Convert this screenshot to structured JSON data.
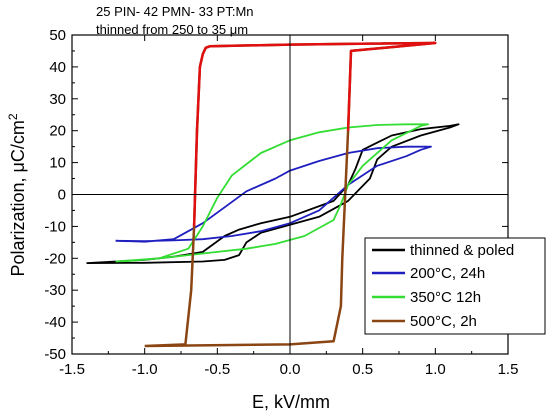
{
  "chart_data": {
    "type": "line",
    "annotation": [
      "25 PIN- 42 PMN- 33 PT:Mn",
      "thinned from 250 to 35 μm"
    ],
    "xlabel": "E, kV/mm",
    "ylabel_main": "Polarization, μC/cm",
    "ylabel_sup": "2",
    "xlim": [
      -1.5,
      1.5
    ],
    "ylim": [
      -50,
      50
    ],
    "xticks": [
      -1.5,
      -1.0,
      -0.5,
      0.0,
      0.5,
      1.0,
      1.5
    ],
    "xtick_labels": [
      "-1.5",
      "-1.0",
      "-0.5",
      "0.0",
      "0.5",
      "1.0",
      "1.5"
    ],
    "yticks": [
      -50,
      -40,
      -30,
      -20,
      -10,
      0,
      10,
      20,
      30,
      40,
      50
    ],
    "ytick_labels": [
      "-50",
      "-40",
      "-30",
      "-20",
      "-10",
      "0",
      "10",
      "20",
      "30",
      "40",
      "50"
    ],
    "grid": false,
    "legend_position": "bottom-right",
    "series": [
      {
        "name": "thinned & poled",
        "color": "#000000",
        "x": [
          -1.4,
          -1.0,
          -0.6,
          -0.45,
          -0.35,
          -0.3,
          -0.2,
          0.0,
          0.2,
          0.4,
          0.55,
          0.6,
          0.7,
          0.9,
          1.1,
          1.16,
          1.1,
          0.9,
          0.7,
          0.5,
          0.45,
          0.4,
          0.3,
          0.0,
          -0.2,
          -0.35,
          -0.45,
          -0.6,
          -0.8,
          -1.0,
          -1.2,
          -1.4
        ],
        "y": [
          -21.5,
          -21.4,
          -21.0,
          -20.5,
          -19.0,
          -15.0,
          -12.0,
          -9.5,
          -7.0,
          -2.0,
          5.0,
          11.0,
          15.0,
          18.5,
          21.0,
          22.0,
          21.5,
          20.5,
          18.5,
          14.0,
          8.0,
          3.0,
          -2.0,
          -7.0,
          -9.0,
          -11.0,
          -13.0,
          -18.0,
          -19.5,
          -20.5,
          -21.0,
          -21.5
        ]
      },
      {
        "name": "200°C, 24h",
        "color": "#1f1fbf",
        "x": [
          -1.2,
          -1.0,
          -0.8,
          -0.6,
          -0.45,
          -0.3,
          -0.1,
          0.0,
          0.2,
          0.4,
          0.6,
          0.8,
          0.97,
          0.9,
          0.8,
          0.6,
          0.4,
          0.2,
          0.0,
          -0.2,
          -0.4,
          -0.6,
          -0.8,
          -1.0,
          -1.2
        ],
        "y": [
          -14.5,
          -14.8,
          -14.0,
          -9.0,
          -4.0,
          1.0,
          5.0,
          7.5,
          10.5,
          13.0,
          14.5,
          15.0,
          15.0,
          14.0,
          12.0,
          9.0,
          3.0,
          -5.0,
          -9.0,
          -11.5,
          -13.0,
          -14.0,
          -14.4,
          -14.6,
          -14.5
        ]
      },
      {
        "name": "350°C 12h",
        "color": "#33dd33",
        "x": [
          -1.2,
          -0.9,
          -0.7,
          -0.6,
          -0.5,
          -0.4,
          -0.2,
          0.0,
          0.2,
          0.4,
          0.6,
          0.8,
          0.95,
          0.9,
          0.7,
          0.5,
          0.4,
          0.35,
          0.3,
          0.1,
          -0.1,
          -0.3,
          -0.5,
          -0.7,
          -0.9,
          -1.1,
          -1.2
        ],
        "y": [
          -21.0,
          -20.0,
          -17.0,
          -10.0,
          -1.0,
          6.0,
          13.0,
          17.0,
          19.5,
          21.0,
          21.8,
          22.0,
          22.0,
          21.5,
          17.0,
          9.0,
          3.0,
          -3.0,
          -8.0,
          -13.0,
          -15.5,
          -17.0,
          -18.0,
          -19.0,
          -20.0,
          -20.8,
          -21.0
        ]
      },
      {
        "name": "500°C, 2h",
        "color": "#8b4513",
        "x": [
          -1.0,
          -0.72,
          -0.68,
          -0.66,
          -0.64,
          -0.62,
          -0.6,
          -0.58,
          -0.55,
          0.0,
          0.4,
          1.0,
          0.42,
          0.4,
          0.38,
          0.36,
          0.35,
          0.3,
          0.0,
          -1.0
        ],
        "y": [
          -47.5,
          -47.0,
          -30.0,
          -10.0,
          20.0,
          40.0,
          44.0,
          46.0,
          46.5,
          47.0,
          47.2,
          47.5,
          45.0,
          20.0,
          0.0,
          -20.0,
          -35.0,
          -46.0,
          -47.0,
          -47.5
        ]
      }
    ]
  }
}
